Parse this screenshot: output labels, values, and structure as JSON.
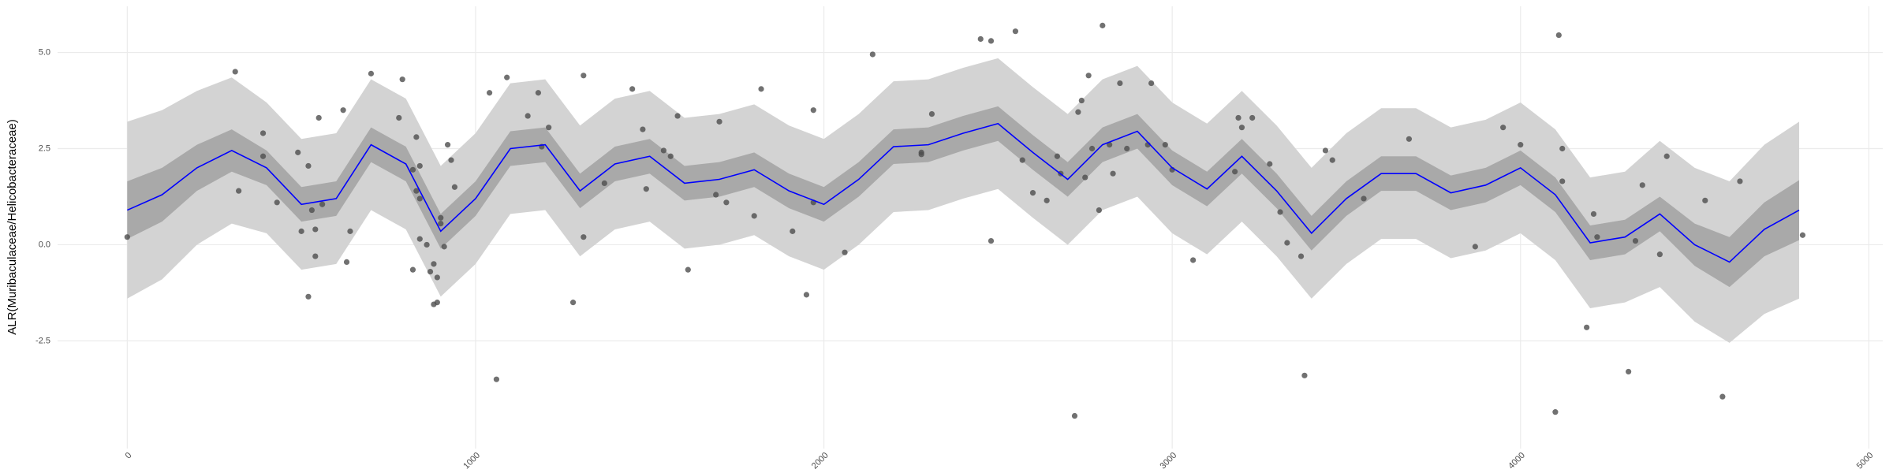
{
  "chart_data": {
    "type": "line",
    "y_label": "ALR(Muribaculaceae/Helicobacteraceae)",
    "x": [
      0,
      100,
      200,
      300,
      400,
      500,
      600,
      700,
      800,
      900,
      1000,
      1100,
      1200,
      1300,
      1400,
      1500,
      1600,
      1700,
      1800,
      1900,
      2000,
      2100,
      2200,
      2300,
      2400,
      2500,
      2600,
      2700,
      2800,
      2900,
      3000,
      3100,
      3200,
      3300,
      3400,
      3500,
      3600,
      3700,
      3800,
      3900,
      4000,
      4100,
      4200,
      4300,
      4400,
      4500,
      4600,
      4700,
      4800
    ],
    "values": [
      0.9,
      1.3,
      2.0,
      2.45,
      2.0,
      1.05,
      1.2,
      2.6,
      2.1,
      0.35,
      1.2,
      2.5,
      2.6,
      1.4,
      2.1,
      2.3,
      1.6,
      1.7,
      1.95,
      1.4,
      1.05,
      1.7,
      2.55,
      2.6,
      2.9,
      3.15,
      2.4,
      1.7,
      2.6,
      2.95,
      2.0,
      1.45,
      2.3,
      1.4,
      0.3,
      1.2,
      1.85,
      1.85,
      1.35,
      1.55,
      2.0,
      1.3,
      0.05,
      0.2,
      0.8,
      0.0,
      -0.45,
      0.4,
      0.9
    ],
    "color": "#0000ff",
    "inner_band": {
      "color": "#a9a9a9",
      "lower": [
        0.15,
        0.6,
        1.4,
        1.9,
        1.55,
        0.6,
        0.75,
        2.15,
        1.65,
        -0.1,
        0.75,
        2.05,
        2.15,
        0.95,
        1.65,
        1.85,
        1.15,
        1.25,
        1.5,
        0.95,
        0.6,
        1.25,
        2.1,
        2.15,
        2.45,
        2.7,
        1.95,
        1.25,
        2.15,
        2.5,
        1.55,
        1.0,
        1.85,
        0.95,
        -0.15,
        0.75,
        1.4,
        1.4,
        0.9,
        1.1,
        1.55,
        0.85,
        -0.4,
        -0.25,
        0.35,
        -0.55,
        -1.1,
        -0.3,
        0.12
      ],
      "upper": [
        1.65,
        2.0,
        2.6,
        3.0,
        2.45,
        1.5,
        1.65,
        3.05,
        2.55,
        0.8,
        1.65,
        2.95,
        3.05,
        1.85,
        2.55,
        2.75,
        2.05,
        2.15,
        2.4,
        1.85,
        1.5,
        2.15,
        3.0,
        3.05,
        3.35,
        3.6,
        2.85,
        2.15,
        3.05,
        3.4,
        2.45,
        1.9,
        2.75,
        1.85,
        0.75,
        1.65,
        2.3,
        2.3,
        1.8,
        2.0,
        2.45,
        1.75,
        0.5,
        0.65,
        1.25,
        0.55,
        0.2,
        1.1,
        1.68
      ]
    },
    "outer_band": {
      "color": "#d3d3d3",
      "lower": [
        -1.4,
        -0.9,
        0.0,
        0.55,
        0.3,
        -0.65,
        -0.5,
        0.9,
        0.4,
        -1.35,
        -0.5,
        0.8,
        0.9,
        -0.3,
        0.4,
        0.6,
        -0.1,
        0.0,
        0.25,
        -0.3,
        -0.65,
        0.0,
        0.85,
        0.9,
        1.2,
        1.45,
        0.7,
        0.0,
        0.9,
        1.25,
        0.3,
        -0.25,
        0.6,
        -0.3,
        -1.4,
        -0.5,
        0.15,
        0.15,
        -0.35,
        -0.15,
        0.3,
        -0.4,
        -1.65,
        -1.5,
        -1.1,
        -2.0,
        -2.55,
        -1.8,
        -1.4
      ],
      "upper": [
        3.2,
        3.5,
        4.0,
        4.35,
        3.7,
        2.75,
        2.9,
        4.3,
        3.8,
        2.05,
        2.9,
        4.2,
        4.3,
        3.1,
        3.8,
        4.0,
        3.3,
        3.4,
        3.65,
        3.1,
        2.75,
        3.4,
        4.25,
        4.3,
        4.6,
        4.85,
        4.1,
        3.4,
        4.3,
        4.65,
        3.7,
        3.15,
        4.0,
        3.1,
        2.0,
        2.9,
        3.55,
        3.55,
        3.05,
        3.25,
        3.7,
        3.0,
        1.75,
        1.9,
        2.7,
        2.0,
        1.65,
        2.6,
        3.2
      ]
    },
    "points": {
      "color": "#4d4d4d",
      "x": [
        0,
        310,
        320,
        390,
        390,
        430,
        490,
        500,
        520,
        520,
        530,
        540,
        540,
        550,
        560,
        620,
        630,
        640,
        700,
        780,
        790,
        820,
        820,
        830,
        830,
        840,
        840,
        840,
        860,
        870,
        880,
        880,
        890,
        890,
        900,
        900,
        910,
        920,
        930,
        940,
        1040,
        1060,
        1090,
        1150,
        1180,
        1190,
        1210,
        1280,
        1310,
        1310,
        1370,
        1450,
        1480,
        1490,
        1540,
        1560,
        1580,
        1610,
        1690,
        1700,
        1720,
        1800,
        1820,
        1910,
        1950,
        1970,
        1970,
        2060,
        2140,
        2280,
        2280,
        2310,
        2450,
        2480,
        2480,
        2550,
        2570,
        2600,
        2640,
        2670,
        2680,
        2720,
        2730,
        2740,
        2750,
        2760,
        2770,
        2790,
        2800,
        2820,
        2830,
        2850,
        2870,
        2930,
        2940,
        2980,
        3000,
        3060,
        3180,
        3190,
        3200,
        3230,
        3280,
        3310,
        3330,
        3370,
        3380,
        3440,
        3460,
        3550,
        3680,
        3870,
        3950,
        4000,
        4100,
        4110,
        4120,
        4120,
        4190,
        4210,
        4220,
        4310,
        4330,
        4350,
        4400,
        4420,
        4530,
        4580,
        4630,
        4810
      ],
      "y": [
        0.2,
        4.5,
        1.4,
        2.3,
        2.9,
        1.1,
        2.4,
        0.35,
        2.05,
        -1.35,
        0.9,
        0.4,
        -0.3,
        3.3,
        1.05,
        3.5,
        -0.45,
        0.35,
        4.45,
        3.3,
        4.3,
        -0.65,
        1.95,
        2.8,
        1.4,
        1.2,
        2.05,
        0.15,
        0.0,
        -0.7,
        -1.55,
        -0.5,
        -0.85,
        -1.5,
        0.7,
        0.55,
        -0.05,
        2.6,
        2.2,
        1.5,
        3.95,
        -3.5,
        4.35,
        3.35,
        3.95,
        2.55,
        3.05,
        -1.5,
        0.2,
        4.4,
        1.6,
        4.05,
        3.0,
        1.45,
        2.45,
        2.3,
        3.35,
        -0.65,
        1.3,
        3.2,
        1.1,
        0.75,
        4.05,
        0.35,
        -1.3,
        3.5,
        1.1,
        -0.2,
        4.95,
        2.4,
        2.35,
        3.4,
        5.35,
        5.3,
        0.1,
        5.55,
        2.2,
        1.35,
        1.15,
        2.3,
        1.85,
        -4.45,
        3.45,
        3.75,
        1.75,
        4.4,
        2.5,
        0.9,
        5.7,
        2.6,
        1.85,
        4.2,
        2.5,
        2.6,
        4.2,
        2.6,
        1.95,
        -0.4,
        1.9,
        3.3,
        3.05,
        3.3,
        2.1,
        0.85,
        0.05,
        -0.3,
        -3.4,
        2.45,
        2.2,
        1.2,
        2.75,
        -0.05,
        3.05,
        2.6,
        -4.35,
        5.45,
        2.5,
        1.65,
        -2.15,
        0.8,
        0.2,
        -3.3,
        0.1,
        1.55,
        -0.25,
        2.3,
        1.15,
        -3.95,
        1.65,
        0.25
      ]
    },
    "xlim": [
      -200,
      5040
    ],
    "ylim": [
      -5.3,
      6.2
    ],
    "xticks": [
      0,
      1000,
      2000,
      3000,
      4000,
      5000
    ],
    "yticks": [
      -2.5,
      {
        "value": 0,
        "label": "0.0"
      },
      2.5,
      {
        "value": 5,
        "label": "5.0"
      }
    ],
    "grid": true
  }
}
